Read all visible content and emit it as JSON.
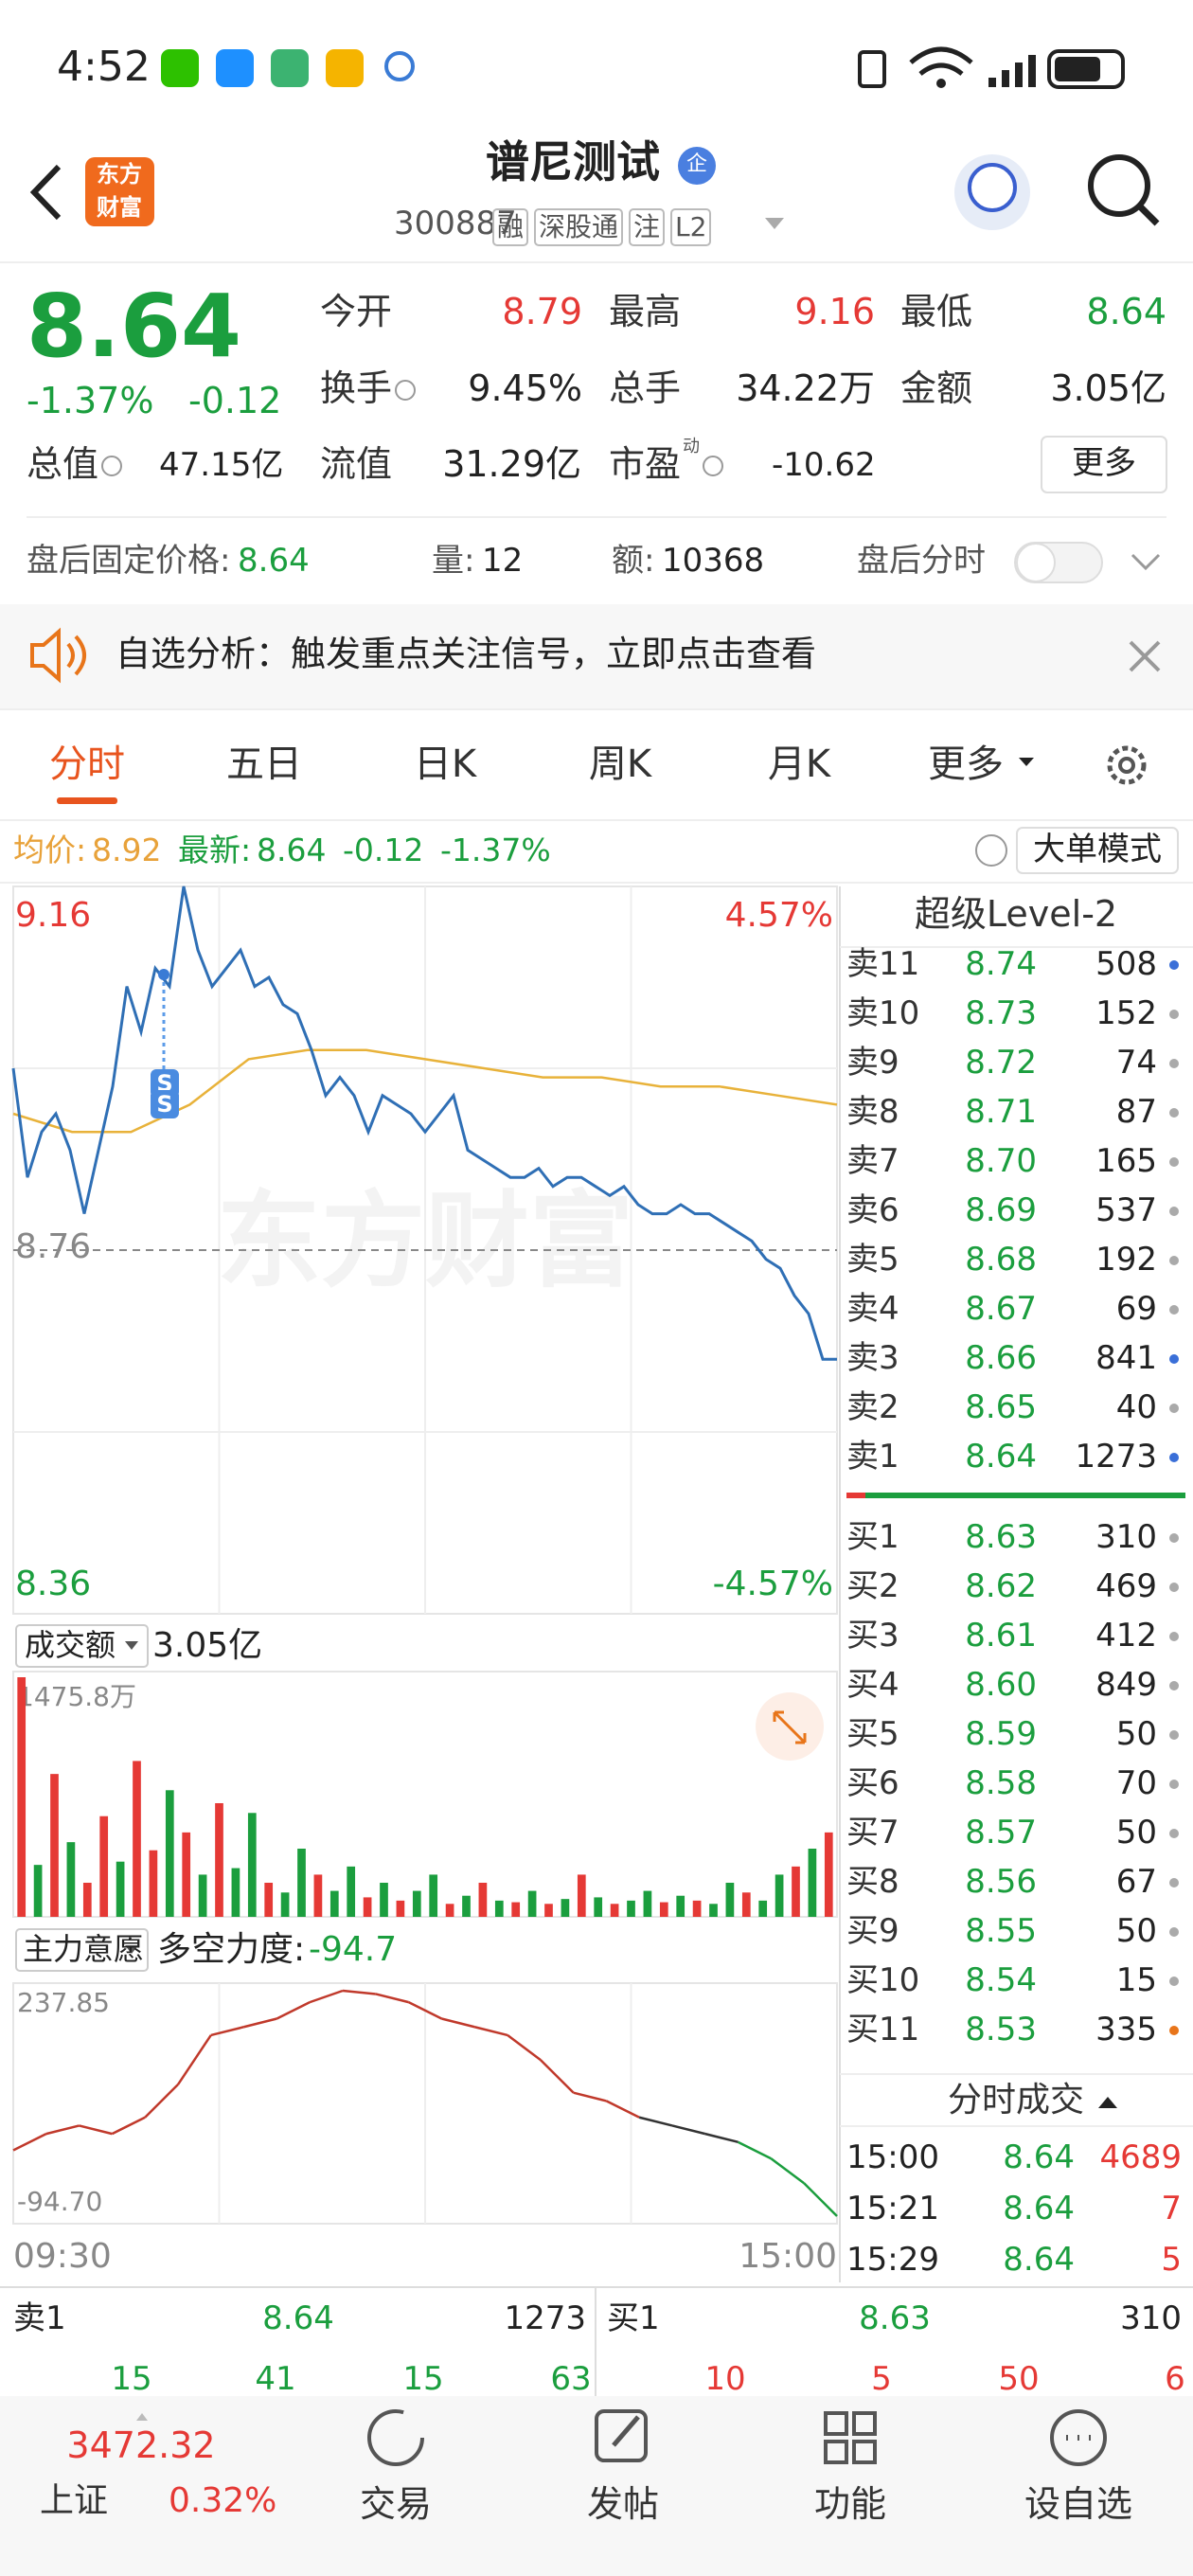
{
  "status_bar": {
    "time": "4:52"
  },
  "header": {
    "logo": [
      "东方",
      "财富"
    ],
    "title": "谱尼测试",
    "badge": "企",
    "code": "300887",
    "tags": [
      "融",
      "深股通",
      "注",
      "L2"
    ]
  },
  "quote": {
    "price": "8.64",
    "change_pct": "-1.37%",
    "change": "-0.12",
    "stats": [
      {
        "label": "今开",
        "value": "8.79",
        "color": "#e53935"
      },
      {
        "label": "最高",
        "value": "9.16",
        "color": "#e53935"
      },
      {
        "label": "最低",
        "value": "8.64",
        "color": "#1b9e3e"
      },
      {
        "label": "换手",
        "value": "9.45%",
        "info": true
      },
      {
        "label": "总手",
        "value": "34.22万"
      },
      {
        "label": "金额",
        "value": "3.05亿"
      },
      {
        "label": "总值",
        "value": "47.15亿",
        "info": true
      },
      {
        "label": "流值",
        "value": "31.29亿"
      },
      {
        "label": "市盈",
        "sup": "动",
        "value": "-10.62",
        "info": true
      }
    ],
    "more": "更多"
  },
  "after_hours": {
    "price_label": "盘后固定价格:",
    "price": "8.64",
    "volume_label": "量:",
    "volume": "12",
    "amount_label": "额:",
    "amount": "10368",
    "toggle_label": "盘后分时"
  },
  "banner": {
    "text": "自选分析：触发重点关注信号，立即点击查看"
  },
  "tabs": {
    "items": [
      "分时",
      "五日",
      "日K",
      "周K",
      "月K",
      "更多"
    ],
    "active": 0
  },
  "info_bar": {
    "avg_label": "均价:",
    "avg": "8.92",
    "last_label": "最新:",
    "last": "8.64",
    "change": "-0.12",
    "change_pct": "-1.37%",
    "mode_button": "大单模式"
  },
  "intraday": {
    "type": "line",
    "price_color": "#2f6fb5",
    "avg_color": "#e8b23a",
    "prices": [
      8.96,
      8.84,
      8.89,
      8.91,
      8.87,
      8.8,
      8.87,
      8.94,
      9.05,
      9.0,
      9.07,
      9.05,
      9.16,
      9.09,
      9.05,
      9.07,
      9.09,
      9.05,
      9.06,
      9.03,
      9.02,
      8.98,
      8.93,
      8.95,
      8.93,
      8.89,
      8.93,
      8.92,
      8.91,
      8.89,
      8.91,
      8.93,
      8.87,
      8.86,
      8.85,
      8.84,
      8.84,
      8.85,
      8.83,
      8.84,
      8.84,
      8.83,
      8.82,
      8.83,
      8.81,
      8.8,
      8.8,
      8.81,
      8.8,
      8.8,
      8.79,
      8.78,
      8.77,
      8.75,
      8.74,
      8.71,
      8.69,
      8.64,
      8.64
    ],
    "avg_prices": [
      8.91,
      8.89,
      8.89,
      8.92,
      8.97,
      8.98,
      8.98,
      8.97,
      8.96,
      8.95,
      8.95,
      8.94,
      8.94,
      8.93,
      8.92
    ],
    "ylim": [
      8.36,
      9.16
    ],
    "yticks": [
      9.16,
      8.76,
      8.36
    ],
    "y2lim": [
      -4.57,
      4.57
    ],
    "y2ticks": [
      {
        "value": 4.57,
        "label": "4.57%"
      },
      {
        "value": -4.57,
        "label": "-4.57%"
      }
    ],
    "x_labels": [
      "09:30",
      "15:00"
    ],
    "watermark": "东方财富",
    "trade_markers": [
      "S",
      "S"
    ]
  },
  "volume": {
    "type": "bar",
    "header": "成交额",
    "total": "3.05亿",
    "up_color": "#e53935",
    "down_color": "#1b9e3e",
    "values": [
      1475.8,
      320,
      880,
      460,
      210,
      620,
      340,
      960,
      410,
      780,
      520,
      260,
      700,
      300,
      640,
      210,
      150,
      420,
      260,
      160,
      310,
      120,
      210,
      100,
      160,
      260,
      80,
      130,
      210,
      100,
      90,
      160,
      80,
      110,
      260,
      120,
      80,
      100,
      160,
      90,
      130,
      100,
      80,
      210,
      150,
      100,
      260,
      310,
      420,
      520
    ],
    "up": [
      true,
      false,
      true,
      false,
      true,
      true,
      false,
      true,
      true,
      false,
      true,
      false,
      true,
      false,
      false,
      true,
      false,
      false,
      true,
      false,
      false,
      true,
      false,
      true,
      false,
      false,
      true,
      false,
      true,
      false,
      true,
      false,
      true,
      false,
      true,
      false,
      true,
      false,
      false,
      true,
      false,
      true,
      false,
      false,
      true,
      false,
      false,
      true,
      false,
      true
    ],
    "ylim": [
      0,
      1475.8
    ],
    "yticks": [
      {
        "value": 1475.8,
        "label": "1475.8万"
      }
    ]
  },
  "force": {
    "type": "line",
    "header": "主力意愿",
    "label": "多空力度:",
    "value": "-94.7",
    "values": [
      2.4,
      26.7,
      38.8,
      26.7,
      51.0,
      99.5,
      172.3,
      184.4,
      196.6,
      220.9,
      237.85,
      233.0,
      220.9,
      196.6,
      184.4,
      172.3,
      135.9,
      87.4,
      75.2,
      51.0,
      38.8,
      26.7,
      14.5,
      -9.8,
      -46.2,
      -94.7
    ],
    "colors": [
      "#c0392b",
      "#c0392b",
      "#c0392b",
      "#c0392b",
      "#c0392b",
      "#c0392b",
      "#c0392b",
      "#c0392b",
      "#c0392b",
      "#c0392b",
      "#c0392b",
      "#c0392b",
      "#c0392b",
      "#c0392b",
      "#c0392b",
      "#c0392b",
      "#c0392b",
      "#c0392b",
      "#c0392b",
      "#c0392b",
      "#333333",
      "#333333",
      "#333333",
      "#1b9e3e",
      "#1b9e3e",
      "#1b9e3e"
    ],
    "ylim": [
      -94.7,
      237.85
    ],
    "yticks": [
      237.85,
      {
        "value": -94.7,
        "label": "-94.70"
      }
    ]
  },
  "order_book": {
    "title": "超级Level-2",
    "asks": [
      {
        "label": "卖11",
        "price": "8.74",
        "volume": "508",
        "dot": "#3a6fd8"
      },
      {
        "label": "卖10",
        "price": "8.73",
        "volume": "152",
        "dot": "#aaaaaa"
      },
      {
        "label": "卖9",
        "price": "8.72",
        "volume": "74",
        "dot": "#aaaaaa"
      },
      {
        "label": "卖8",
        "price": "8.71",
        "volume": "87",
        "dot": "#aaaaaa"
      },
      {
        "label": "卖7",
        "price": "8.70",
        "volume": "165",
        "dot": "#aaaaaa"
      },
      {
        "label": "卖6",
        "price": "8.69",
        "volume": "537",
        "dot": "#aaaaaa"
      },
      {
        "label": "卖5",
        "price": "8.68",
        "volume": "192",
        "dot": "#aaaaaa"
      },
      {
        "label": "卖4",
        "price": "8.67",
        "volume": "69",
        "dot": "#aaaaaa"
      },
      {
        "label": "卖3",
        "price": "8.66",
        "volume": "841",
        "dot": "#3a6fd8"
      },
      {
        "label": "卖2",
        "price": "8.65",
        "volume": "40",
        "dot": "#aaaaaa"
      },
      {
        "label": "卖1",
        "price": "8.64",
        "volume": "1273",
        "dot": "#3a6fd8"
      }
    ],
    "bids": [
      {
        "label": "买1",
        "price": "8.63",
        "volume": "310",
        "dot": "#aaaaaa"
      },
      {
        "label": "买2",
        "price": "8.62",
        "volume": "469",
        "dot": "#aaaaaa"
      },
      {
        "label": "买3",
        "price": "8.61",
        "volume": "412",
        "dot": "#aaaaaa"
      },
      {
        "label": "买4",
        "price": "8.60",
        "volume": "849",
        "dot": "#aaaaaa"
      },
      {
        "label": "买5",
        "price": "8.59",
        "volume": "50",
        "dot": "#aaaaaa"
      },
      {
        "label": "买6",
        "price": "8.58",
        "volume": "70",
        "dot": "#aaaaaa"
      },
      {
        "label": "买7",
        "price": "8.57",
        "volume": "50",
        "dot": "#aaaaaa"
      },
      {
        "label": "买8",
        "price": "8.56",
        "volume": "67",
        "dot": "#aaaaaa"
      },
      {
        "label": "买9",
        "price": "8.55",
        "volume": "50",
        "dot": "#aaaaaa"
      },
      {
        "label": "买10",
        "price": "8.54",
        "volume": "15",
        "dot": "#aaaaaa"
      },
      {
        "label": "买11",
        "price": "8.53",
        "volume": "335",
        "dot": "#e8751a"
      }
    ],
    "trades_title": "分时成交",
    "trades": [
      {
        "time": "15:00",
        "price": "8.64",
        "volume": "4689"
      },
      {
        "time": "15:21",
        "price": "8.64",
        "volume": "7"
      },
      {
        "time": "15:29",
        "price": "8.64",
        "volume": "5"
      }
    ]
  },
  "level1": {
    "ask": {
      "label": "卖1",
      "price": "8.64",
      "volume": "1273"
    },
    "bid": {
      "label": "买1",
      "price": "8.63",
      "volume": "310"
    },
    "ask_counts": [
      "15",
      "41",
      "15",
      "63"
    ],
    "bid_counts": [
      "10",
      "5",
      "50",
      "6"
    ]
  },
  "nav": {
    "index_value": "3472.32",
    "index_name": "上证",
    "index_change": "0.32%",
    "items": [
      "交易",
      "发帖",
      "功能",
      "设自选"
    ]
  }
}
